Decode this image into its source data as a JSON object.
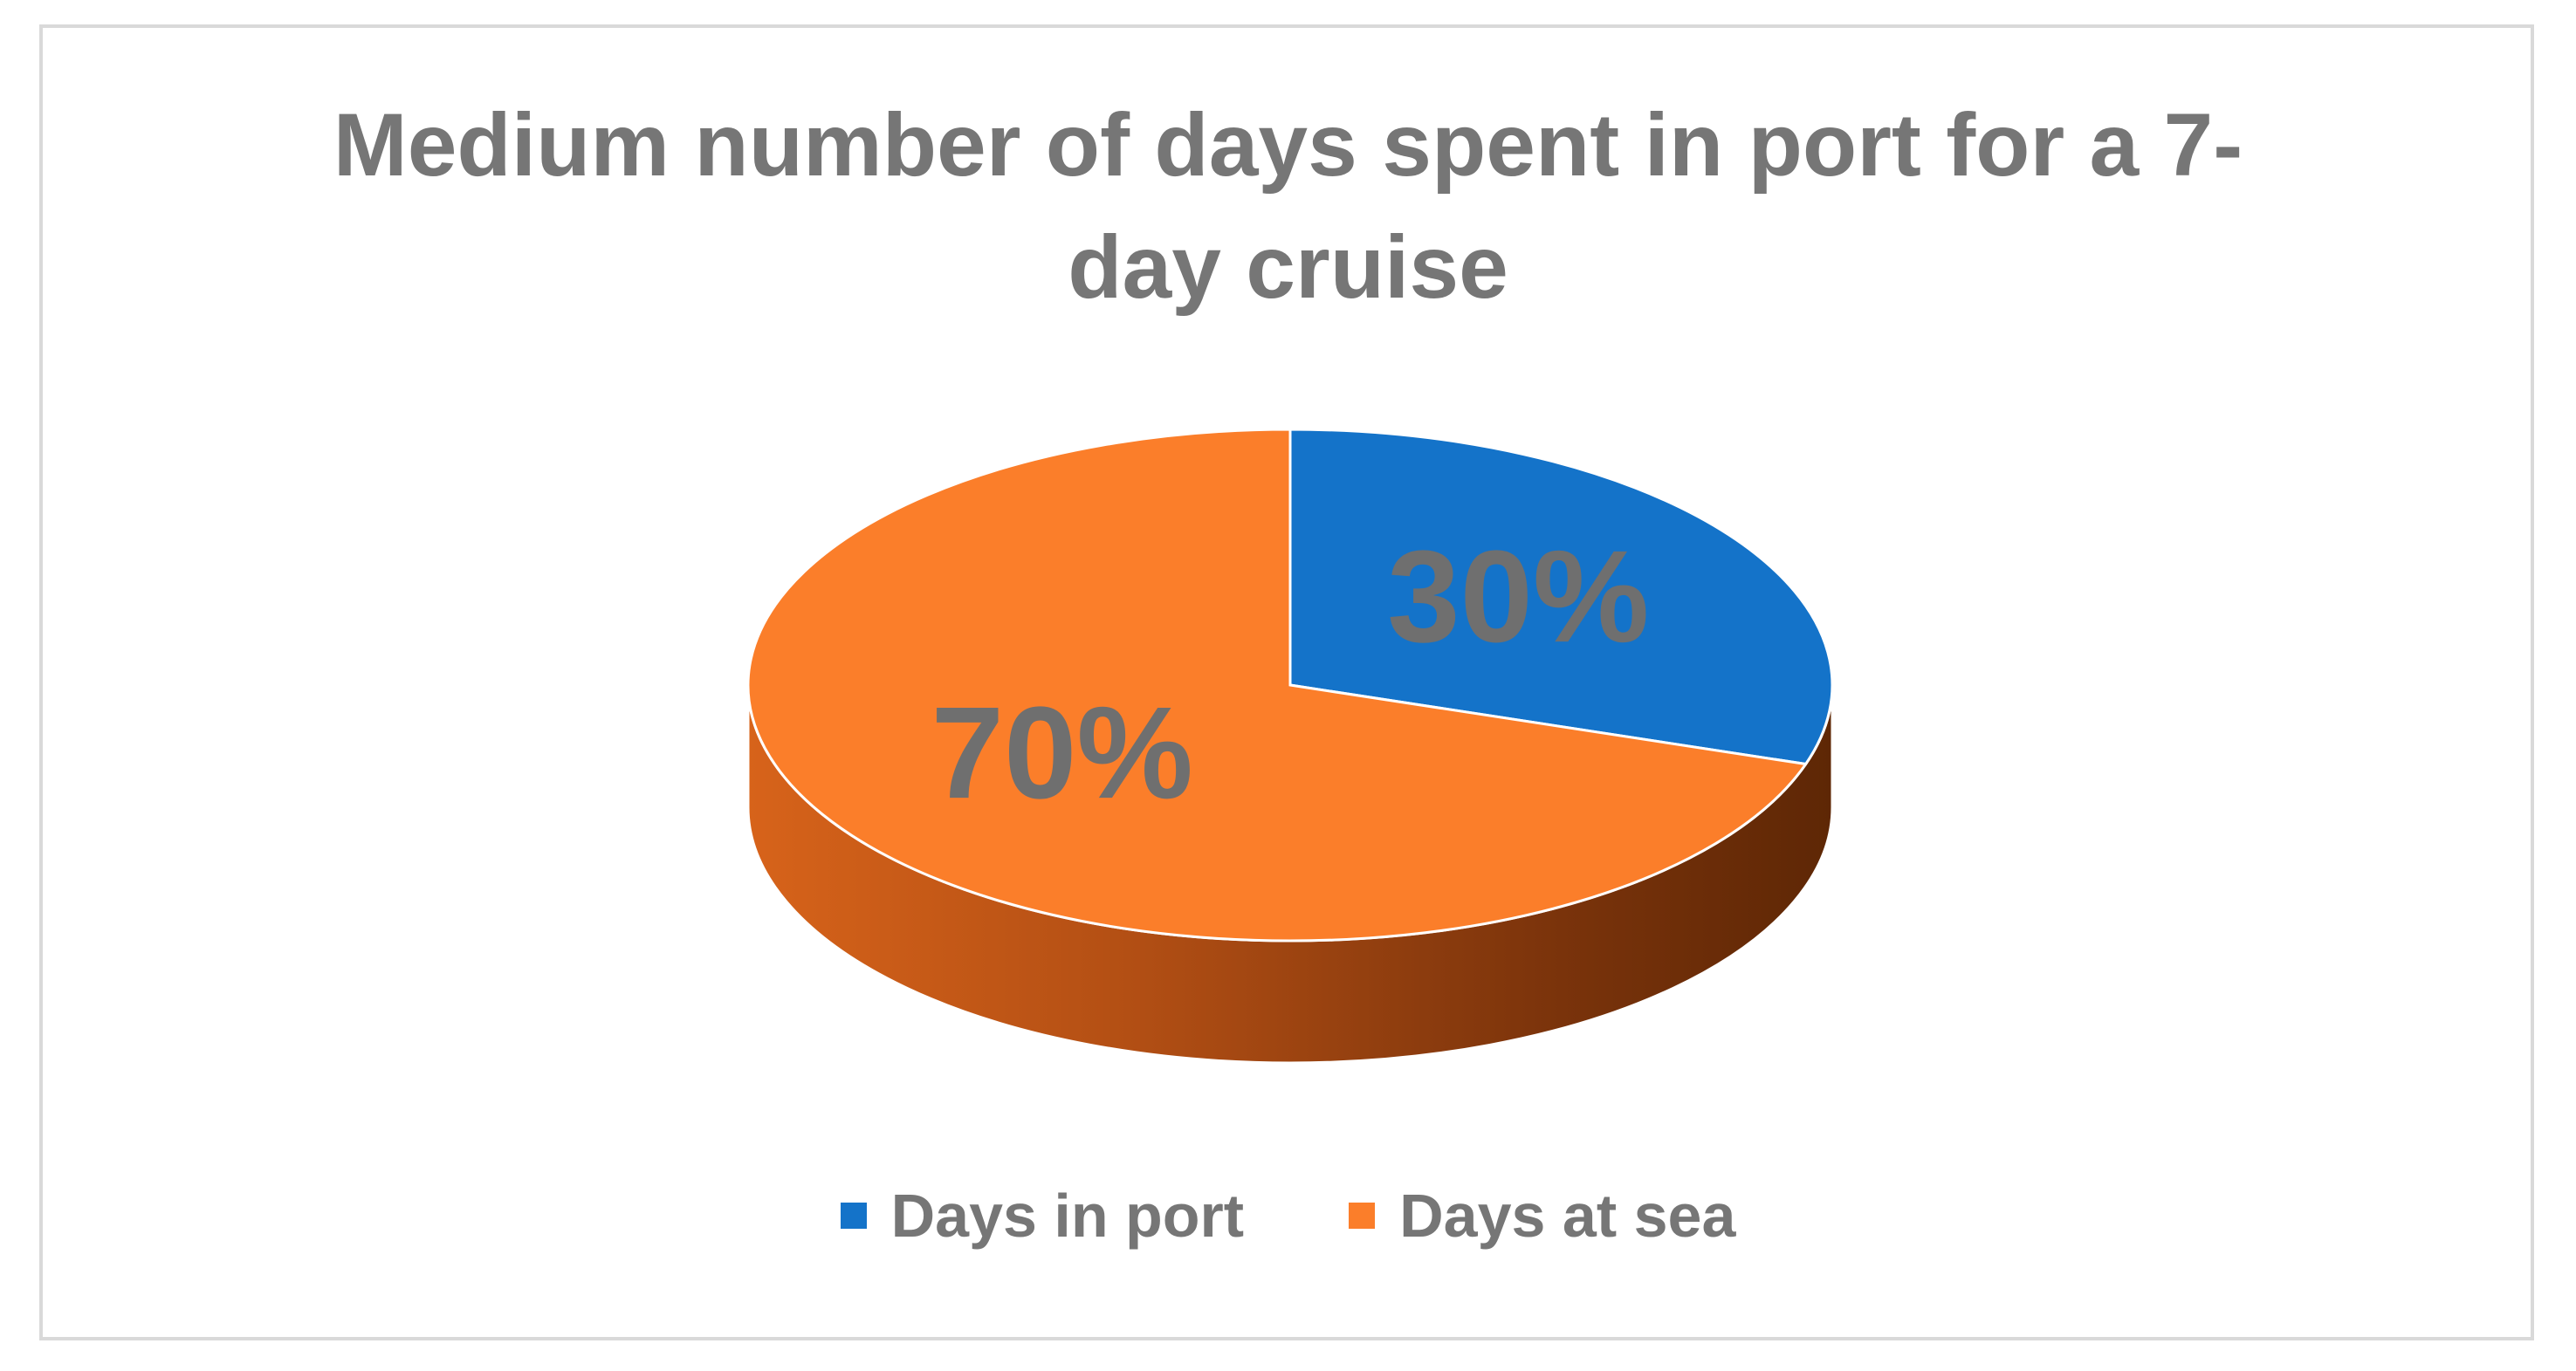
{
  "chart_data": {
    "type": "pie",
    "title": "Medium number of days spent in port for a 7-day cruise",
    "title_lines": [
      "Medium number of days spent in port for a 7-",
      "day cruise"
    ],
    "categories": [
      "Days in port",
      "Days at sea"
    ],
    "values": [
      30,
      70
    ],
    "data_labels": [
      "30%",
      "70%"
    ],
    "colors": [
      "#1473c9",
      "#fb7e2a"
    ],
    "legend": "bottom",
    "style": "3d"
  }
}
